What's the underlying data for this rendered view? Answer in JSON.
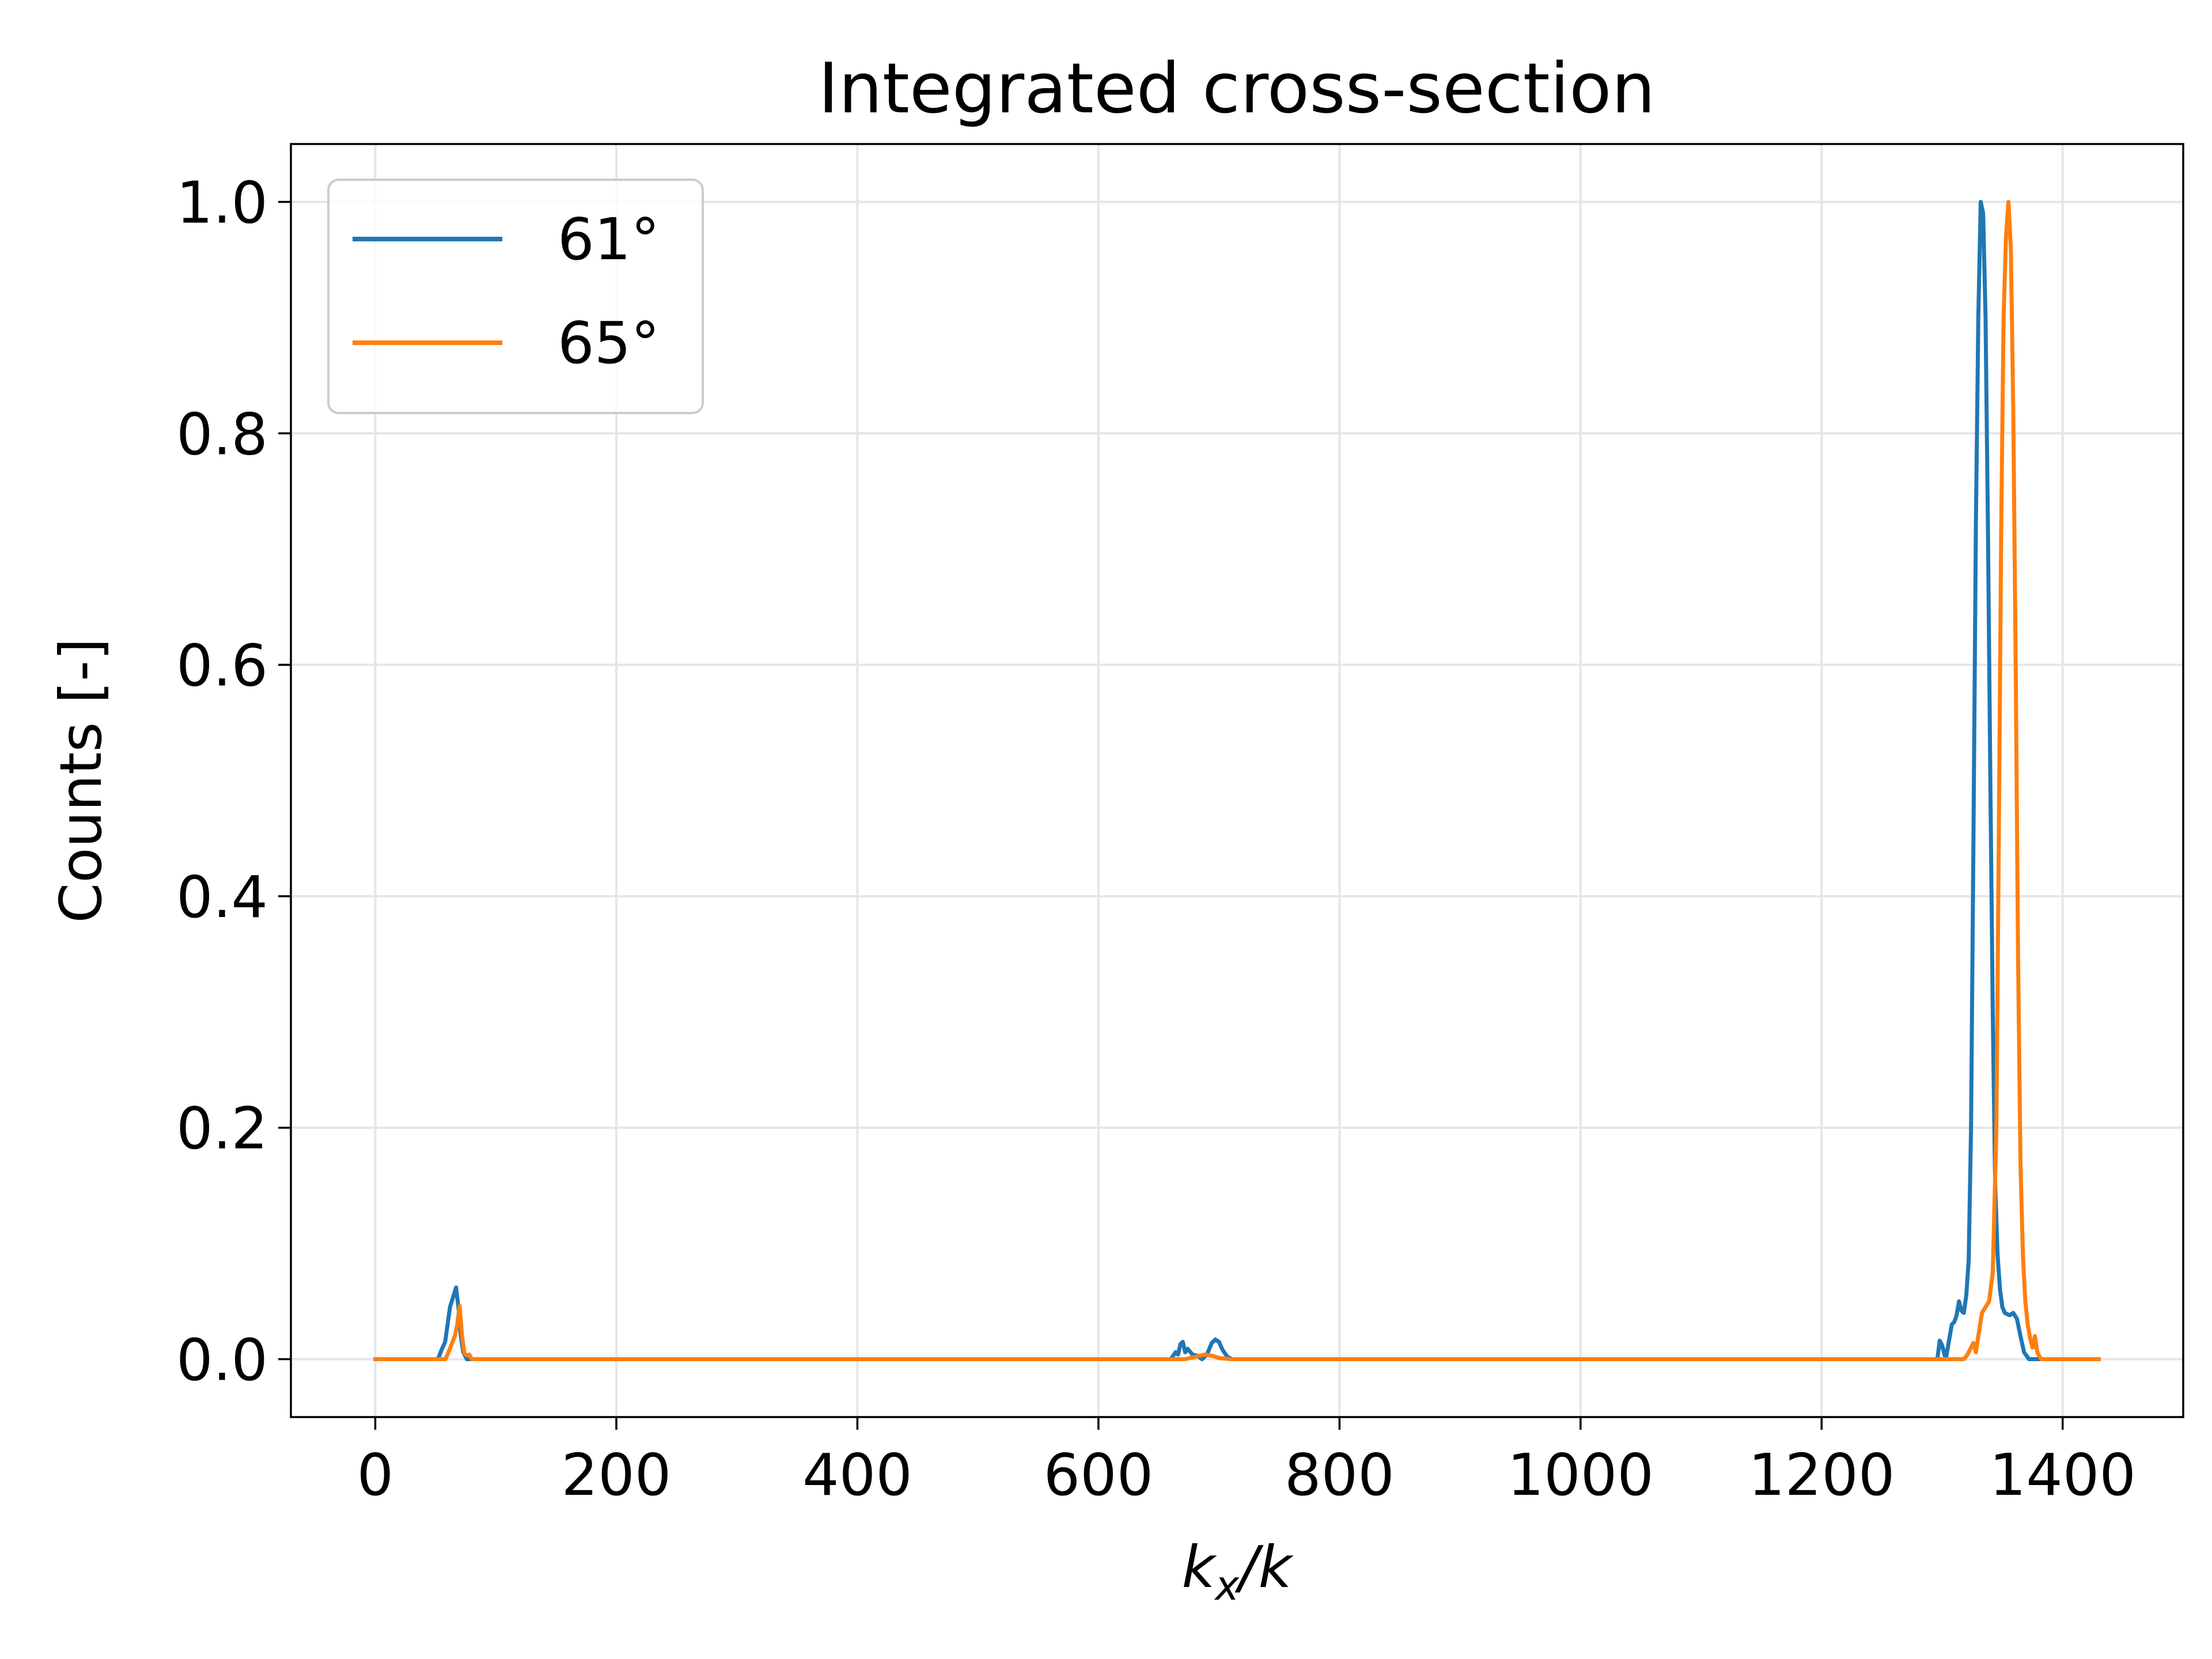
{
  "chart_data": {
    "type": "line",
    "title": "Integrated cross-section",
    "xlabel_main": "k",
    "xlabel_sub": "x",
    "xlabel_tail": "/k",
    "ylabel": "Counts [-]",
    "xlim": [
      -70,
      1500
    ],
    "ylim": [
      -0.05,
      1.05
    ],
    "xticks": [
      0,
      200,
      400,
      600,
      800,
      1000,
      1200,
      1400
    ],
    "xtick_labels": [
      "0",
      "200",
      "400",
      "600",
      "800",
      "1000",
      "1200",
      "1400"
    ],
    "yticks": [
      0.0,
      0.2,
      0.4,
      0.6,
      0.8,
      1.0
    ],
    "ytick_labels": [
      "0.0",
      "0.2",
      "0.4",
      "0.6",
      "0.8",
      "1.0"
    ],
    "grid": true,
    "legend_placement": "upper-left",
    "series": [
      {
        "name": "61°",
        "color": "#1f77b4",
        "points": [
          [
            0,
            0
          ],
          [
            52,
            0
          ],
          [
            55,
            0.008
          ],
          [
            58,
            0.015
          ],
          [
            60,
            0.03
          ],
          [
            62,
            0.045
          ],
          [
            65,
            0.055
          ],
          [
            67,
            0.062
          ],
          [
            69,
            0.045
          ],
          [
            71,
            0.02
          ],
          [
            73,
            0.006
          ],
          [
            76,
            0
          ],
          [
            80,
            0
          ],
          [
            660,
            0
          ],
          [
            664,
            0.006
          ],
          [
            666,
            0.004
          ],
          [
            668,
            0.013
          ],
          [
            670,
            0.015
          ],
          [
            672,
            0.006
          ],
          [
            674,
            0.009
          ],
          [
            678,
            0.004
          ],
          [
            682,
            0.003
          ],
          [
            686,
            0
          ],
          [
            690,
            0.004
          ],
          [
            694,
            0.014
          ],
          [
            697,
            0.017
          ],
          [
            700,
            0.015
          ],
          [
            703,
            0.008
          ],
          [
            707,
            0.002
          ],
          [
            711,
            0
          ],
          [
            1290,
            0
          ],
          [
            1296,
            0
          ],
          [
            1298,
            0.016
          ],
          [
            1300,
            0.012
          ],
          [
            1303,
            0
          ],
          [
            1306,
            0.018
          ],
          [
            1308,
            0.03
          ],
          [
            1310,
            0.032
          ],
          [
            1312,
            0.038
          ],
          [
            1314,
            0.05
          ],
          [
            1316,
            0.042
          ],
          [
            1318,
            0.04
          ],
          [
            1320,
            0.055
          ],
          [
            1322,
            0.085
          ],
          [
            1324,
            0.2
          ],
          [
            1326,
            0.45
          ],
          [
            1328,
            0.72
          ],
          [
            1330,
            0.9
          ],
          [
            1332,
            1.0
          ],
          [
            1334,
            0.99
          ],
          [
            1336,
            0.9
          ],
          [
            1338,
            0.72
          ],
          [
            1340,
            0.5
          ],
          [
            1342,
            0.3
          ],
          [
            1344,
            0.15
          ],
          [
            1346,
            0.09
          ],
          [
            1348,
            0.06
          ],
          [
            1350,
            0.045
          ],
          [
            1352,
            0.04
          ],
          [
            1356,
            0.038
          ],
          [
            1359,
            0.04
          ],
          [
            1362,
            0.035
          ],
          [
            1365,
            0.02
          ],
          [
            1368,
            0.006
          ],
          [
            1372,
            0
          ],
          [
            1380,
            0
          ]
        ]
      },
      {
        "name": "65°",
        "color": "#ff7f0e",
        "points": [
          [
            0,
            0
          ],
          [
            58,
            0
          ],
          [
            60,
            0.004
          ],
          [
            63,
            0.012
          ],
          [
            66,
            0.02
          ],
          [
            68,
            0.03
          ],
          [
            70,
            0.046
          ],
          [
            72,
            0.02
          ],
          [
            74,
            0.005
          ],
          [
            76,
            0.003
          ],
          [
            78,
            0.004
          ],
          [
            80,
            0
          ],
          [
            84,
            0
          ],
          [
            672,
            0
          ],
          [
            680,
            0.002
          ],
          [
            688,
            0.004
          ],
          [
            694,
            0.003
          ],
          [
            700,
            0.001
          ],
          [
            710,
            0
          ],
          [
            1310,
            0
          ],
          [
            1318,
            0
          ],
          [
            1321,
            0.004
          ],
          [
            1324,
            0.01
          ],
          [
            1326,
            0.014
          ],
          [
            1328,
            0.006
          ],
          [
            1330,
            0.02
          ],
          [
            1333,
            0.04
          ],
          [
            1336,
            0.045
          ],
          [
            1339,
            0.05
          ],
          [
            1342,
            0.075
          ],
          [
            1345,
            0.2
          ],
          [
            1347,
            0.45
          ],
          [
            1349,
            0.72
          ],
          [
            1351,
            0.9
          ],
          [
            1353,
            0.97
          ],
          [
            1355,
            1.0
          ],
          [
            1357,
            0.96
          ],
          [
            1359,
            0.82
          ],
          [
            1361,
            0.6
          ],
          [
            1363,
            0.35
          ],
          [
            1365,
            0.17
          ],
          [
            1367,
            0.09
          ],
          [
            1369,
            0.05
          ],
          [
            1371,
            0.03
          ],
          [
            1373,
            0.018
          ],
          [
            1375,
            0.01
          ],
          [
            1377,
            0.02
          ],
          [
            1379,
            0.006
          ],
          [
            1382,
            0
          ],
          [
            1430,
            0
          ]
        ]
      }
    ]
  }
}
